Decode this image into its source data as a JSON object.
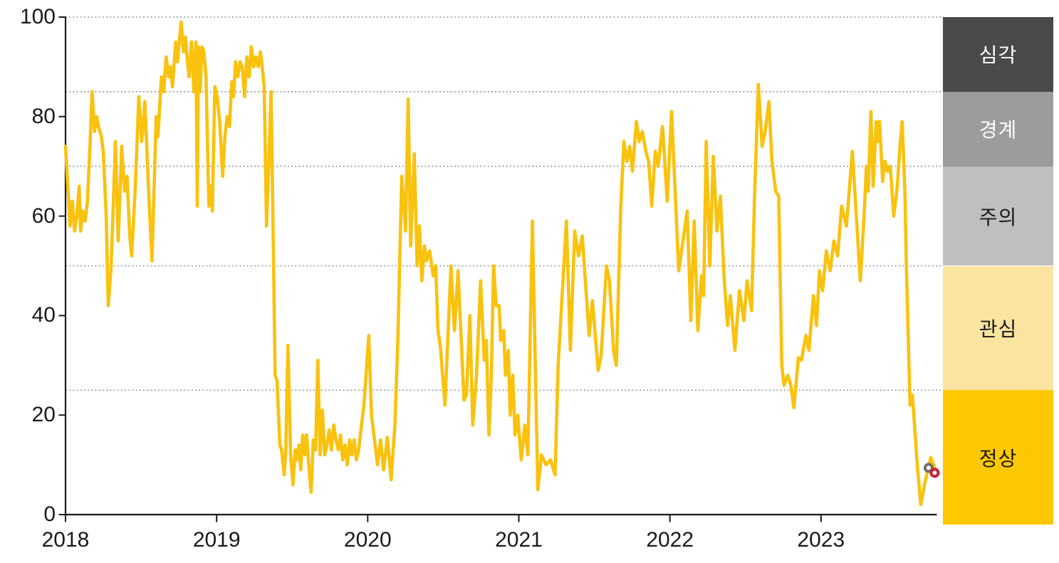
{
  "chart_data": {
    "type": "line",
    "title": "",
    "x_axis": {
      "tick_labels": [
        "2018",
        "2019",
        "2020",
        "2021",
        "2022",
        "2023"
      ],
      "range": [
        2018.0,
        2023.77
      ]
    },
    "y_axis": {
      "tick_labels": [
        "0",
        "20",
        "40",
        "60",
        "80",
        "100"
      ],
      "tick_values": [
        0,
        20,
        40,
        60,
        80,
        100
      ],
      "range": [
        0,
        100
      ]
    },
    "gridline_values": [
      25,
      50,
      70,
      85,
      100
    ],
    "grid_on": true,
    "legend_position": "right-band-column",
    "risk_bands": [
      {
        "id": "severe",
        "label": "심각",
        "from": 85,
        "to": 100,
        "color": "#4A4A4A",
        "text_color": "#FFFFFF"
      },
      {
        "id": "alert",
        "label": "경계",
        "from": 70,
        "to": 85,
        "color": "#9C9C9C",
        "text_color": "#FFFFFF"
      },
      {
        "id": "caution",
        "label": "주의",
        "from": 50,
        "to": 70,
        "color": "#BFBFBF",
        "text_color": "#1A1A1A"
      },
      {
        "id": "interest",
        "label": "관심",
        "from": 25,
        "to": 50,
        "color": "#FBE3A0",
        "text_color": "#1A1A1A"
      },
      {
        "id": "normal",
        "label": "정상",
        "from": 0,
        "to": 25,
        "color": "#FDC800",
        "text_color": "#1A1A1A"
      }
    ],
    "series": [
      {
        "name": "financial-stress-index",
        "color": "#F9C20E",
        "x_unit": "years since 2018",
        "points": [
          [
            0.0,
            74
          ],
          [
            0.015,
            66
          ],
          [
            0.03,
            58
          ],
          [
            0.045,
            63
          ],
          [
            0.06,
            57
          ],
          [
            0.075,
            60
          ],
          [
            0.09,
            66
          ],
          [
            0.1,
            57
          ],
          [
            0.115,
            61
          ],
          [
            0.13,
            59
          ],
          [
            0.145,
            63
          ],
          [
            0.163,
            75
          ],
          [
            0.176,
            85
          ],
          [
            0.192,
            77
          ],
          [
            0.206,
            80
          ],
          [
            0.218,
            78
          ],
          [
            0.237,
            76
          ],
          [
            0.25,
            73
          ],
          [
            0.269,
            60
          ],
          [
            0.283,
            42
          ],
          [
            0.3,
            49
          ],
          [
            0.316,
            62
          ],
          [
            0.33,
            75
          ],
          [
            0.349,
            55
          ],
          [
            0.372,
            74
          ],
          [
            0.391,
            65
          ],
          [
            0.407,
            68
          ],
          [
            0.425,
            56
          ],
          [
            0.438,
            52
          ],
          [
            0.462,
            66
          ],
          [
            0.485,
            84
          ],
          [
            0.505,
            75
          ],
          [
            0.525,
            83
          ],
          [
            0.55,
            65
          ],
          [
            0.572,
            51
          ],
          [
            0.6,
            80
          ],
          [
            0.612,
            76
          ],
          [
            0.635,
            88
          ],
          [
            0.65,
            85
          ],
          [
            0.666,
            92
          ],
          [
            0.682,
            88
          ],
          [
            0.694,
            90
          ],
          [
            0.708,
            86
          ],
          [
            0.729,
            95
          ],
          [
            0.741,
            91
          ],
          [
            0.765,
            99
          ],
          [
            0.781,
            93
          ],
          [
            0.793,
            96
          ],
          [
            0.807,
            91
          ],
          [
            0.818,
            88
          ],
          [
            0.834,
            95
          ],
          [
            0.85,
            85
          ],
          [
            0.863,
            95
          ],
          [
            0.872,
            62
          ],
          [
            0.88,
            94
          ],
          [
            0.891,
            85
          ],
          [
            0.903,
            94
          ],
          [
            0.916,
            93
          ],
          [
            0.93,
            88
          ],
          [
            0.949,
            62
          ],
          [
            0.961,
            66
          ],
          [
            0.972,
            61
          ],
          [
            0.988,
            86
          ],
          [
            1.004,
            84
          ],
          [
            1.02,
            79
          ],
          [
            1.04,
            68
          ],
          [
            1.055,
            76
          ],
          [
            1.07,
            80
          ],
          [
            1.085,
            78
          ],
          [
            1.1,
            87
          ],
          [
            1.112,
            84
          ],
          [
            1.125,
            91
          ],
          [
            1.14,
            88
          ],
          [
            1.155,
            91
          ],
          [
            1.17,
            90
          ],
          [
            1.185,
            84
          ],
          [
            1.2,
            92
          ],
          [
            1.215,
            88
          ],
          [
            1.23,
            94
          ],
          [
            1.245,
            90
          ],
          [
            1.26,
            92
          ],
          [
            1.275,
            90
          ],
          [
            1.29,
            93
          ],
          [
            1.302,
            90
          ],
          [
            1.315,
            86
          ],
          [
            1.33,
            58
          ],
          [
            1.347,
            72
          ],
          [
            1.36,
            85
          ],
          [
            1.375,
            55
          ],
          [
            1.387,
            28
          ],
          [
            1.4,
            27
          ],
          [
            1.418,
            14
          ],
          [
            1.43,
            13
          ],
          [
            1.447,
            8
          ],
          [
            1.458,
            13
          ],
          [
            1.472,
            34
          ],
          [
            1.49,
            12
          ],
          [
            1.505,
            6
          ],
          [
            1.52,
            13
          ],
          [
            1.532,
            11
          ],
          [
            1.545,
            14
          ],
          [
            1.557,
            9
          ],
          [
            1.57,
            16
          ],
          [
            1.582,
            12
          ],
          [
            1.595,
            16
          ],
          [
            1.61,
            10
          ],
          [
            1.625,
            4.5
          ],
          [
            1.64,
            15
          ],
          [
            1.655,
            13
          ],
          [
            1.67,
            31
          ],
          [
            1.685,
            12
          ],
          [
            1.7,
            21
          ],
          [
            1.715,
            12
          ],
          [
            1.73,
            14
          ],
          [
            1.745,
            17
          ],
          [
            1.76,
            13
          ],
          [
            1.775,
            18
          ],
          [
            1.79,
            15
          ],
          [
            1.805,
            13
          ],
          [
            1.82,
            16
          ],
          [
            1.835,
            11
          ],
          [
            1.85,
            14
          ],
          [
            1.865,
            10
          ],
          [
            1.88,
            15
          ],
          [
            1.895,
            12
          ],
          [
            1.91,
            15
          ],
          [
            1.925,
            11
          ],
          [
            1.94,
            13
          ],
          [
            1.955,
            17
          ],
          [
            1.975,
            22
          ],
          [
            1.993,
            30
          ],
          [
            2.007,
            36
          ],
          [
            2.025,
            20
          ],
          [
            2.045,
            15
          ],
          [
            2.065,
            10
          ],
          [
            2.085,
            15
          ],
          [
            2.105,
            9
          ],
          [
            2.13,
            15.5
          ],
          [
            2.155,
            7
          ],
          [
            2.18,
            18
          ],
          [
            2.2,
            36
          ],
          [
            2.225,
            68
          ],
          [
            2.25,
            57
          ],
          [
            2.268,
            83.5
          ],
          [
            2.284,
            54
          ],
          [
            2.308,
            72.5
          ],
          [
            2.327,
            50
          ],
          [
            2.342,
            58
          ],
          [
            2.358,
            47
          ],
          [
            2.375,
            54
          ],
          [
            2.389,
            51
          ],
          [
            2.41,
            53
          ],
          [
            2.433,
            48
          ],
          [
            2.45,
            50
          ],
          [
            2.465,
            37
          ],
          [
            2.48,
            34
          ],
          [
            2.511,
            22
          ],
          [
            2.551,
            50
          ],
          [
            2.574,
            37
          ],
          [
            2.598,
            49
          ],
          [
            2.637,
            23
          ],
          [
            2.653,
            24
          ],
          [
            2.676,
            40
          ],
          [
            2.695,
            18
          ],
          [
            2.72,
            28
          ],
          [
            2.747,
            47
          ],
          [
            2.771,
            31
          ],
          [
            2.785,
            35
          ],
          [
            2.802,
            16
          ],
          [
            2.818,
            28
          ],
          [
            2.833,
            50
          ],
          [
            2.85,
            42
          ],
          [
            2.87,
            42
          ],
          [
            2.88,
            35
          ],
          [
            2.9,
            37
          ],
          [
            2.912,
            28
          ],
          [
            2.93,
            33
          ],
          [
            2.943,
            20
          ],
          [
            2.96,
            28
          ],
          [
            2.975,
            16
          ],
          [
            2.993,
            20
          ],
          [
            3.016,
            11
          ],
          [
            3.04,
            18
          ],
          [
            3.06,
            12
          ],
          [
            3.09,
            59
          ],
          [
            3.126,
            5
          ],
          [
            3.15,
            12
          ],
          [
            3.18,
            10
          ],
          [
            3.21,
            11
          ],
          [
            3.24,
            8
          ],
          [
            3.26,
            30
          ],
          [
            3.315,
            59
          ],
          [
            3.341,
            33
          ],
          [
            3.37,
            57
          ],
          [
            3.395,
            52
          ],
          [
            3.42,
            56
          ],
          [
            3.465,
            36
          ],
          [
            3.487,
            43
          ],
          [
            3.525,
            29
          ],
          [
            3.545,
            32
          ],
          [
            3.58,
            50
          ],
          [
            3.6,
            47
          ],
          [
            3.627,
            33
          ],
          [
            3.645,
            30
          ],
          [
            3.675,
            62
          ],
          [
            3.695,
            75
          ],
          [
            3.715,
            71
          ],
          [
            3.734,
            74
          ],
          [
            3.752,
            69
          ],
          [
            3.778,
            79
          ],
          [
            3.797,
            75
          ],
          [
            3.817,
            77
          ],
          [
            3.841,
            73
          ],
          [
            3.859,
            71
          ],
          [
            3.88,
            62
          ],
          [
            3.903,
            73
          ],
          [
            3.922,
            70
          ],
          [
            3.951,
            78
          ],
          [
            3.982,
            63
          ],
          [
            4.011,
            81
          ],
          [
            4.058,
            49
          ],
          [
            4.114,
            61
          ],
          [
            4.138,
            39
          ],
          [
            4.161,
            59
          ],
          [
            4.185,
            37
          ],
          [
            4.209,
            48
          ],
          [
            4.223,
            44
          ],
          [
            4.24,
            75
          ],
          [
            4.264,
            50
          ],
          [
            4.287,
            72
          ],
          [
            4.311,
            57
          ],
          [
            4.334,
            64
          ],
          [
            4.358,
            48
          ],
          [
            4.381,
            38
          ],
          [
            4.4,
            44
          ],
          [
            4.43,
            33
          ],
          [
            4.46,
            45
          ],
          [
            4.49,
            39
          ],
          [
            4.51,
            47
          ],
          [
            4.54,
            41
          ],
          [
            4.56,
            64
          ],
          [
            4.585,
            86.5
          ],
          [
            4.61,
            74
          ],
          [
            4.63,
            77
          ],
          [
            4.655,
            83
          ],
          [
            4.675,
            71
          ],
          [
            4.7,
            65
          ],
          [
            4.72,
            64
          ],
          [
            4.74,
            30
          ],
          [
            4.755,
            26
          ],
          [
            4.78,
            28
          ],
          [
            4.8,
            26
          ],
          [
            4.82,
            21.5
          ],
          [
            4.85,
            31.5
          ],
          [
            4.87,
            31
          ],
          [
            4.9,
            36
          ],
          [
            4.92,
            33
          ],
          [
            4.95,
            44
          ],
          [
            4.97,
            38
          ],
          [
            4.99,
            49
          ],
          [
            5.01,
            45
          ],
          [
            5.035,
            53
          ],
          [
            5.06,
            49
          ],
          [
            5.085,
            55
          ],
          [
            5.11,
            52
          ],
          [
            5.136,
            62
          ],
          [
            5.168,
            58
          ],
          [
            5.207,
            73
          ],
          [
            5.23,
            62
          ],
          [
            5.26,
            47
          ],
          [
            5.285,
            60
          ],
          [
            5.3,
            70
          ],
          [
            5.312,
            65
          ],
          [
            5.33,
            81
          ],
          [
            5.345,
            66
          ],
          [
            5.365,
            79
          ],
          [
            5.377,
            75
          ],
          [
            5.387,
            79
          ],
          [
            5.408,
            67
          ],
          [
            5.423,
            71
          ],
          [
            5.44,
            69
          ],
          [
            5.458,
            70
          ],
          [
            5.481,
            60
          ],
          [
            5.505,
            66
          ],
          [
            5.52,
            73
          ],
          [
            5.537,
            79
          ],
          [
            5.555,
            65
          ],
          [
            5.565,
            50
          ],
          [
            5.589,
            22
          ],
          [
            5.605,
            24
          ],
          [
            5.637,
            10
          ],
          [
            5.66,
            2
          ],
          [
            5.688,
            6.5
          ],
          [
            5.726,
            11.5
          ],
          [
            5.77,
            8
          ]
        ]
      }
    ],
    "end_markers": [
      {
        "id": "gray-ring-marker",
        "year": 2023.712,
        "value": 9.4,
        "color": "#6F6F6F"
      },
      {
        "id": "red-ring-marker",
        "year": 2023.752,
        "value": 8.4,
        "color": "#CB2030"
      }
    ]
  },
  "colors": {
    "background": "#FFFFFF",
    "axis": "#1A1A1A",
    "grid": "#8A8A8A"
  }
}
